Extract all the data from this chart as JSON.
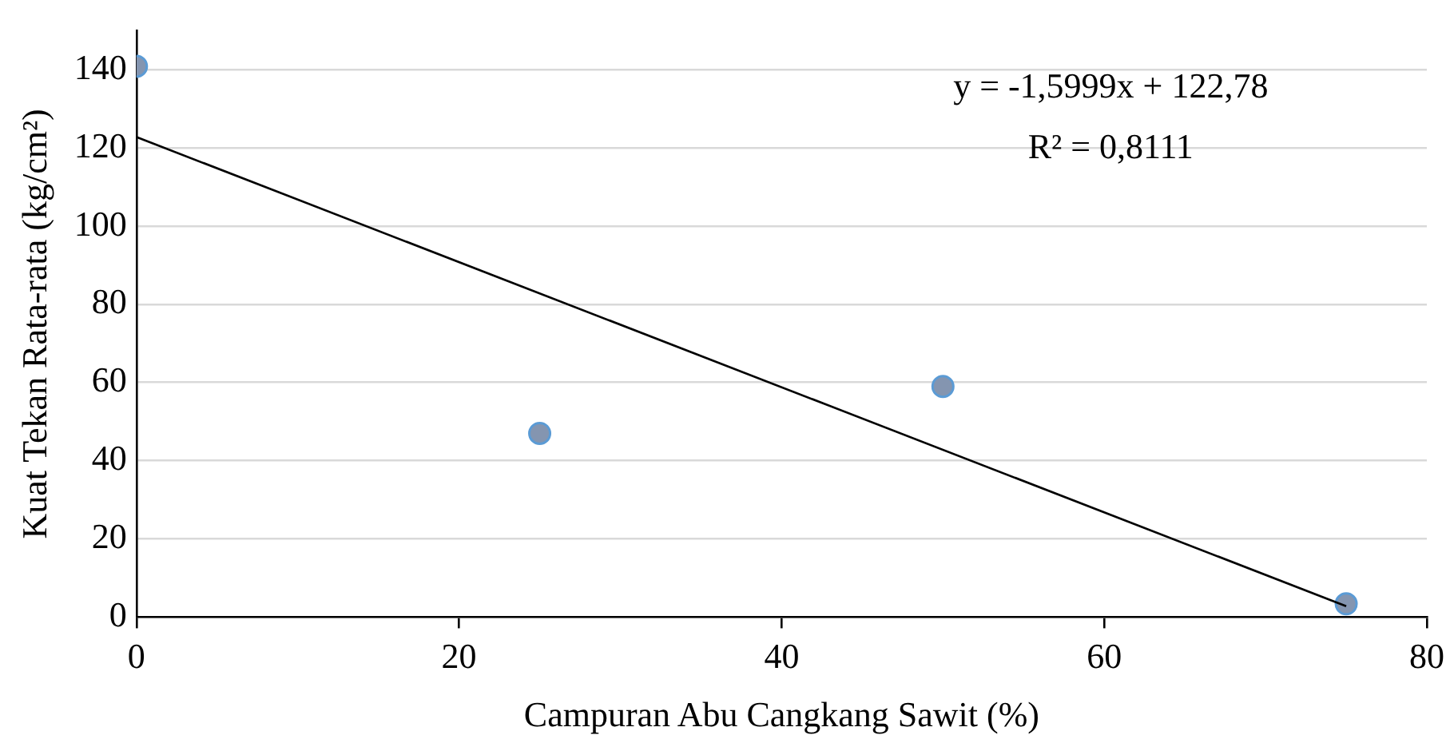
{
  "chart_data": {
    "type": "scatter",
    "xlabel": "Campuran Abu Cangkang Sawit (%)",
    "ylabel": "Kuat Tekan Rata-rata (kg/cm²)",
    "xlim": [
      0,
      80
    ],
    "xticks": [
      0,
      20,
      40,
      60,
      80
    ],
    "ylim": [
      0,
      150
    ],
    "yticks": [
      0,
      20,
      40,
      60,
      80,
      100,
      120,
      140
    ],
    "grid": "y",
    "legend": false,
    "marker": "circle",
    "annotations": [
      "y = -1,5999x + 122,78",
      "R² = 0,8111"
    ],
    "series": [
      {
        "color": "#8495b0",
        "x": [
          0,
          25,
          50,
          75
        ],
        "values": [
          140.9,
          47,
          59,
          3.4
        ]
      },
      {
        "type": "line",
        "color": "#000000",
        "marker": "none",
        "x": [
          0,
          75
        ],
        "values": [
          122.8,
          2.8
        ]
      }
    ]
  }
}
